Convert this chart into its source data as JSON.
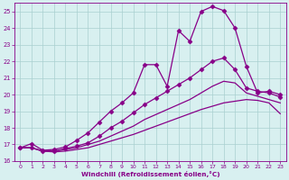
{
  "background_color": "#d8f0f0",
  "grid_color": "#aacfcf",
  "line_color": "#880088",
  "xlabel": "Windchill (Refroidissement éolien,°C)",
  "ylim": [
    16,
    25.5
  ],
  "xlim": [
    -0.5,
    23.5
  ],
  "yticks": [
    16,
    17,
    18,
    19,
    20,
    21,
    22,
    23,
    24,
    25
  ],
  "xticks": [
    0,
    1,
    2,
    3,
    4,
    5,
    6,
    7,
    8,
    9,
    10,
    11,
    12,
    13,
    14,
    15,
    16,
    17,
    18,
    19,
    20,
    21,
    22,
    23
  ],
  "lines": [
    {
      "x": [
        0,
        1,
        2,
        3,
        4,
        5,
        6,
        7,
        8,
        9,
        10,
        11,
        12,
        13,
        14,
        15,
        16,
        17,
        18,
        19,
        20,
        21,
        22,
        23
      ],
      "y": [
        16.8,
        17.05,
        16.65,
        16.7,
        16.85,
        17.25,
        17.7,
        18.35,
        19.0,
        19.5,
        20.1,
        21.8,
        21.8,
        20.5,
        23.85,
        23.2,
        25.0,
        25.3,
        25.05,
        24.0,
        21.7,
        20.1,
        20.2,
        20.0
      ],
      "marker": "D",
      "markersize": 2.5,
      "linewidth": 0.9
    },
    {
      "x": [
        0,
        1,
        2,
        3,
        4,
        5,
        6,
        7,
        8,
        9,
        10,
        11,
        12,
        13,
        14,
        15,
        16,
        17,
        18,
        19,
        20,
        21,
        22,
        23
      ],
      "y": [
        16.8,
        16.8,
        16.6,
        16.6,
        16.75,
        16.9,
        17.1,
        17.5,
        18.0,
        18.4,
        18.9,
        19.4,
        19.8,
        20.2,
        20.6,
        21.0,
        21.5,
        22.0,
        22.2,
        21.5,
        20.4,
        20.2,
        20.1,
        19.85
      ],
      "marker": "D",
      "markersize": 2.5,
      "linewidth": 0.9
    },
    {
      "x": [
        0,
        1,
        2,
        3,
        4,
        5,
        6,
        7,
        8,
        9,
        10,
        11,
        12,
        13,
        14,
        15,
        16,
        17,
        18,
        19,
        20,
        21,
        22,
        23
      ],
      "y": [
        16.8,
        16.8,
        16.6,
        16.6,
        16.7,
        16.8,
        17.0,
        17.2,
        17.5,
        17.8,
        18.1,
        18.5,
        18.8,
        19.1,
        19.4,
        19.7,
        20.1,
        20.5,
        20.8,
        20.7,
        20.1,
        19.9,
        19.7,
        19.5
      ],
      "marker": null,
      "markersize": 0,
      "linewidth": 0.9
    },
    {
      "x": [
        0,
        1,
        2,
        3,
        4,
        5,
        6,
        7,
        8,
        9,
        10,
        11,
        12,
        13,
        14,
        15,
        16,
        17,
        18,
        19,
        20,
        21,
        22,
        23
      ],
      "y": [
        16.8,
        16.8,
        16.6,
        16.55,
        16.6,
        16.7,
        16.8,
        17.0,
        17.2,
        17.4,
        17.6,
        17.85,
        18.1,
        18.35,
        18.6,
        18.85,
        19.1,
        19.3,
        19.5,
        19.6,
        19.7,
        19.65,
        19.5,
        18.85
      ],
      "marker": null,
      "markersize": 0,
      "linewidth": 0.9
    }
  ]
}
